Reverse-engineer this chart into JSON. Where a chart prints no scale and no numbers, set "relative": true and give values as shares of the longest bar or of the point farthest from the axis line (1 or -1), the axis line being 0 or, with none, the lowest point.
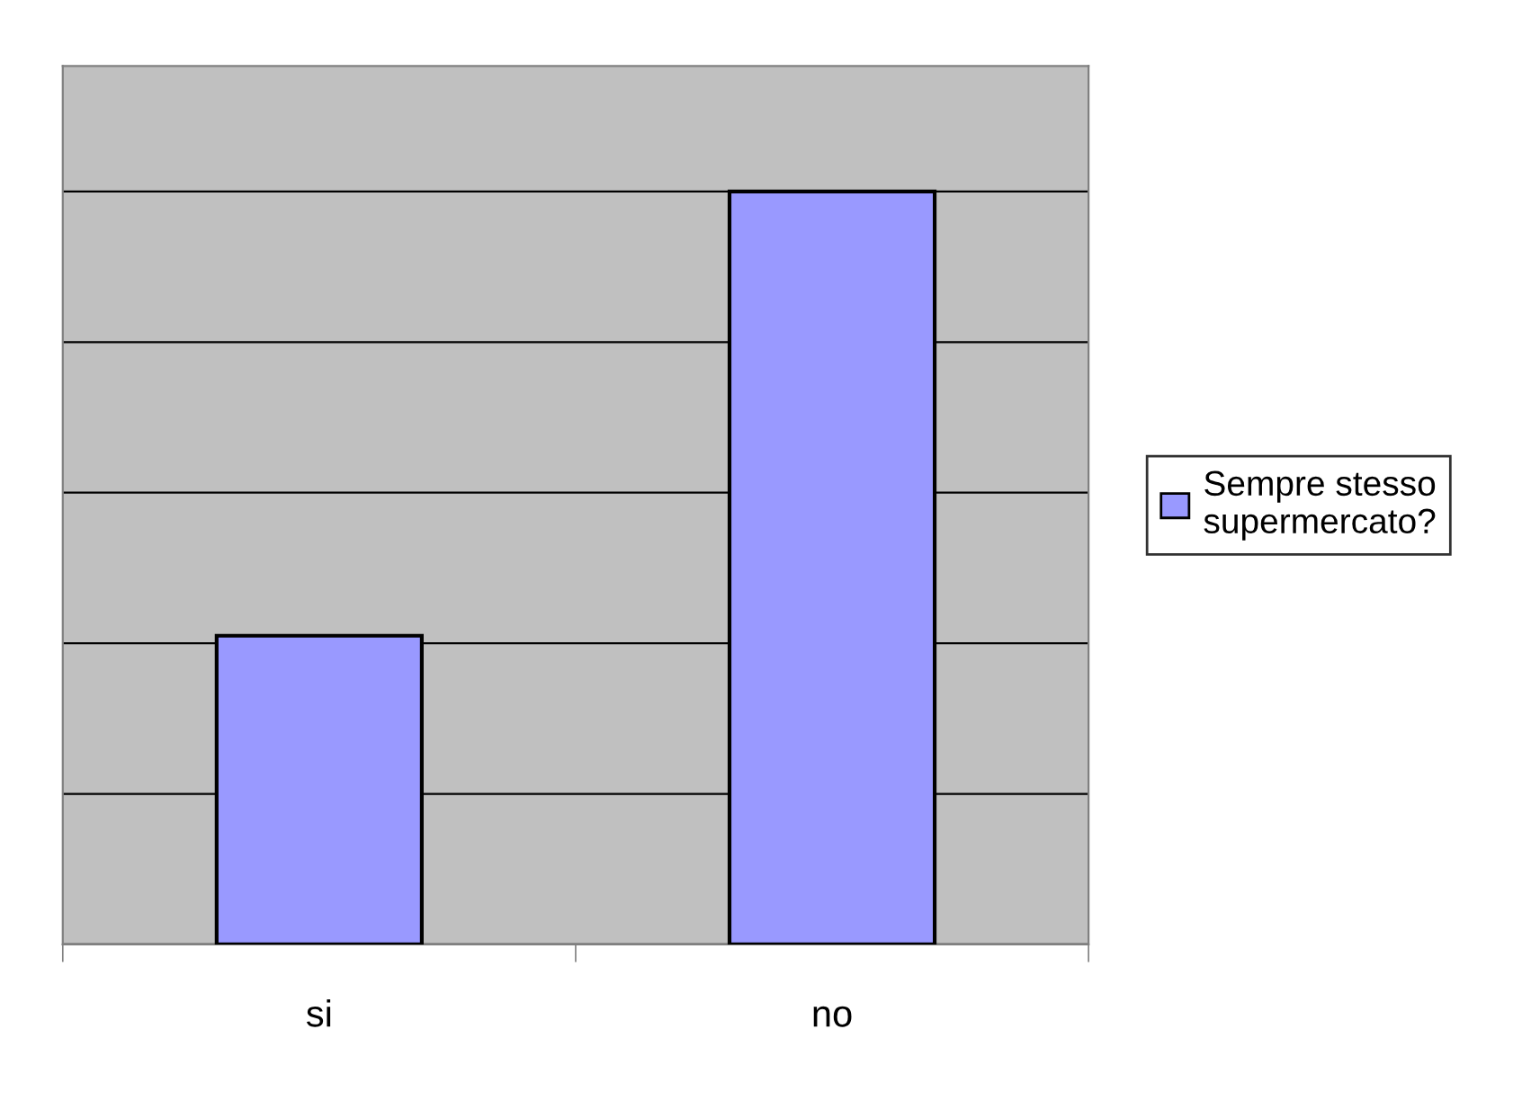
{
  "chart_data": {
    "type": "bar",
    "relative": true,
    "categories": [
      "si",
      "no"
    ],
    "series": [
      {
        "name": "Sempre stesso\nsupermercato?",
        "color": "#9999ff",
        "values": [
          0.41,
          1
        ]
      }
    ],
    "grid": "y",
    "legend": "right"
  }
}
